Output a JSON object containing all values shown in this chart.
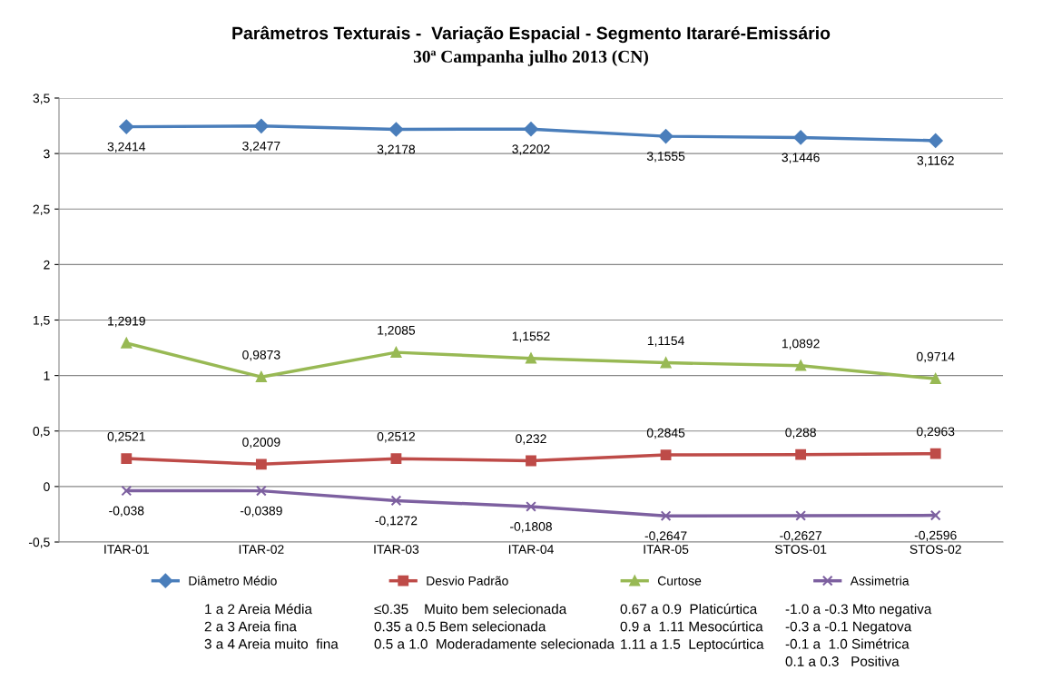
{
  "chart_data": {
    "type": "line",
    "title": "Parâmetros Texturais -  Variação Espacial - Segmento Itararé-Emissário",
    "subtitle": "30ª Campanha julho 2013 (CN)",
    "categories": [
      "ITAR-01",
      "ITAR-02",
      "ITAR-03",
      "ITAR-04",
      "ITAR-05",
      "STOS-01",
      "STOS-02"
    ],
    "series": [
      {
        "name": "Diâmetro Médio",
        "color": "#4a7ebb",
        "marker": "diamond",
        "values": [
          3.2414,
          3.2477,
          3.2178,
          3.2202,
          3.1555,
          3.1446,
          3.1162
        ],
        "value_labels": [
          "3,2414",
          "3,2477",
          "3,2178",
          "3,2202",
          "3,1555",
          "3,1446",
          "3,1162"
        ]
      },
      {
        "name": "Desvio Padrão",
        "color": "#be4b48",
        "marker": "square",
        "values": [
          0.2521,
          0.2009,
          0.2512,
          0.232,
          0.2845,
          0.288,
          0.2963
        ],
        "value_labels": [
          "0,2521",
          "0,2009",
          "0,2512",
          "0,232",
          "0,2845",
          "0,288",
          "0,2963"
        ]
      },
      {
        "name": "Curtose",
        "color": "#98b954",
        "marker": "triangle",
        "values": [
          1.2919,
          0.9873,
          1.2085,
          1.1552,
          1.1154,
          1.0892,
          0.9714
        ],
        "value_labels": [
          "1,2919",
          "0,9873",
          "1,2085",
          "1,1552",
          "1,1154",
          "1,0892",
          "0,9714"
        ]
      },
      {
        "name": "Assimetria",
        "color": "#7d60a0",
        "marker": "cross",
        "values": [
          -0.038,
          -0.0389,
          -0.1272,
          -0.1808,
          -0.2647,
          -0.2627,
          -0.2596
        ],
        "value_labels": [
          "-0,038",
          "-0,0389",
          "-0,1272",
          "-0,1808",
          "-0,2647",
          "-0,2627",
          "-0,2596"
        ]
      }
    ],
    "ylim": [
      -0.5,
      3.5
    ],
    "yticks": [
      {
        "value": -0.5,
        "label": "-0,5"
      },
      0,
      {
        "value": 0.5,
        "label": "0,5"
      },
      1,
      {
        "value": 1.5,
        "label": "1,5"
      },
      2,
      {
        "value": 2.5,
        "label": "2,5"
      },
      3,
      {
        "value": 3.5,
        "label": "3,5"
      }
    ],
    "grid": "y",
    "legend": "bottom",
    "annotations": [
      "1 a 2 Areia Média\n2 a 3 Areia fina\n3 a 4 Areia muito  fina",
      "≤0.35    Muito bem selecionada\n0.35 a 0.5 Bem selecionada\n0.5 a 1.0  Moderadamente selecionada",
      "0.67 a 0.9  Platicúrtica\n0.9 a  1.11 Mesocúrtica\n1.11 a 1.5  Leptocúrtica",
      "-1.0 a -0.3 Mto negativa\n-0.3 a -0.1 Negatova\n-0.1 a  1.0 Simétrica\n0.1 a 0.3   Positiva"
    ]
  }
}
